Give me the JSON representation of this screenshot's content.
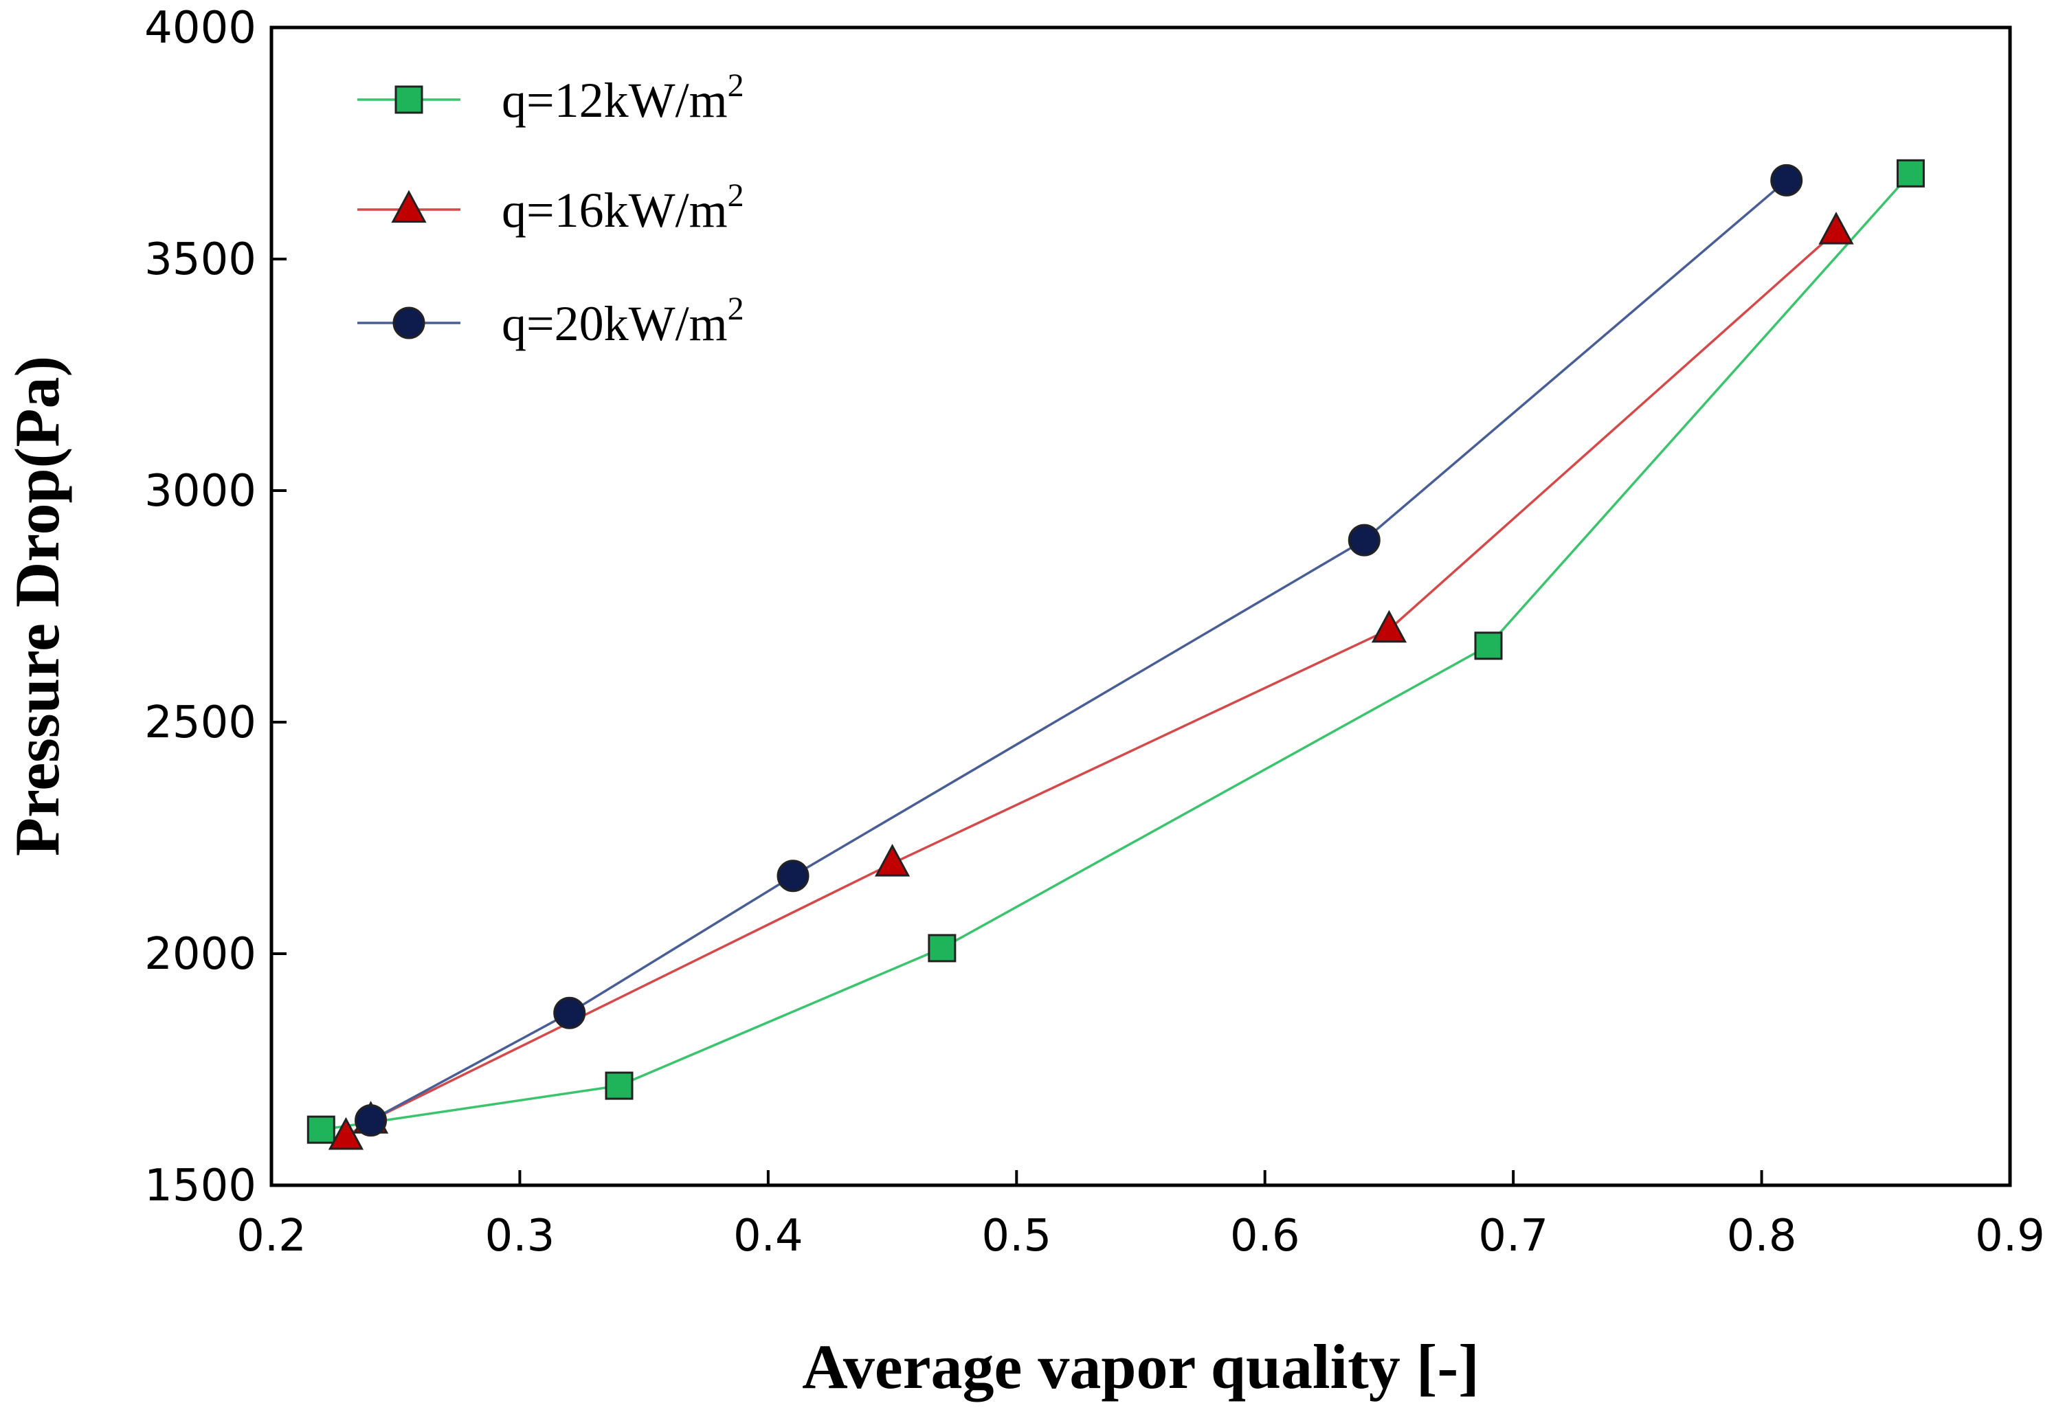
{
  "chart_data": {
    "type": "line",
    "title": "",
    "xlabel": "Average vapor quality [-]",
    "ylabel": "Pressure Drop(Pa)",
    "xlim": [
      0.2,
      0.9
    ],
    "ylim": [
      1500,
      4000
    ],
    "x_ticks": [
      "0.2",
      "0.3",
      "0.4",
      "0.5",
      "0.6",
      "0.7",
      "0.8",
      "0.9"
    ],
    "y_ticks": [
      "1500",
      "2000",
      "2500",
      "3000",
      "3500",
      "4000"
    ],
    "grid": false,
    "legend_position": "top-left",
    "series": [
      {
        "name": "q=12kW/m",
        "name_sup": "2",
        "marker": "square",
        "color": "#3cc36e",
        "marker_fill": "#1fb45a",
        "points": [
          [
            0.22,
            1620
          ],
          [
            0.34,
            1715
          ],
          [
            0.47,
            2012
          ],
          [
            0.69,
            2665
          ],
          [
            0.86,
            3685
          ]
        ]
      },
      {
        "name": "q=16kW/m",
        "name_sup": "2",
        "marker": "triangle",
        "color": "#d44a4a",
        "marker_fill": "#c00000",
        "points": [
          [
            0.23,
            1605
          ],
          [
            0.24,
            1640
          ],
          [
            0.45,
            2195
          ],
          [
            0.65,
            2700
          ],
          [
            0.83,
            3560
          ]
        ]
      },
      {
        "name": "q=20kW/m",
        "name_sup": "2",
        "marker": "circle",
        "color": "#4a5e96",
        "marker_fill": "#0d1b4d",
        "points": [
          [
            0.24,
            1640
          ],
          [
            0.32,
            1872
          ],
          [
            0.41,
            2168
          ],
          [
            0.64,
            2893
          ],
          [
            0.81,
            3670
          ]
        ]
      }
    ]
  }
}
